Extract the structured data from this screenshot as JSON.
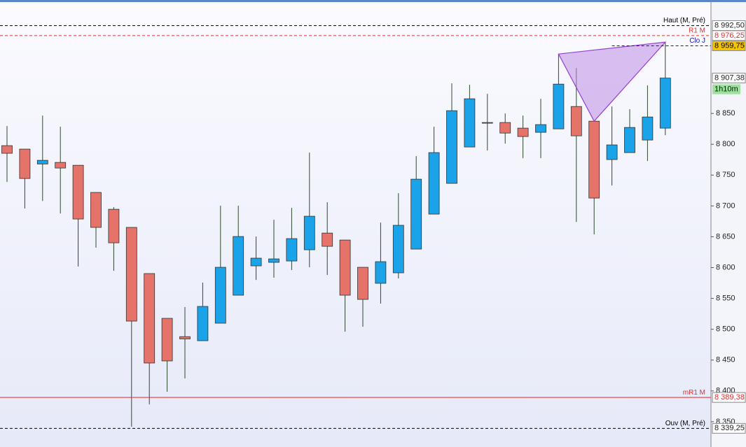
{
  "chart_data": {
    "type": "candlestick",
    "ylim": [
      8309,
      9034
    ],
    "yticks": [
      {
        "value": 8350,
        "label": "8 350"
      },
      {
        "value": 8400,
        "label": "8 400"
      },
      {
        "value": 8450,
        "label": "8 450"
      },
      {
        "value": 8500,
        "label": "8 500"
      },
      {
        "value": 8550,
        "label": "8 550"
      },
      {
        "value": 8600,
        "label": "8 600"
      },
      {
        "value": 8650,
        "label": "8 650"
      },
      {
        "value": 8700,
        "label": "8 700"
      },
      {
        "value": 8750,
        "label": "8 750"
      },
      {
        "value": 8800,
        "label": "8 800"
      },
      {
        "value": 8850,
        "label": "8 850"
      }
    ],
    "up_color": "#1aa3e8",
    "down_color": "#e5736a",
    "open": [
      8797.8,
      8792.2,
      8768,
      8770.6,
      8766,
      8721.9,
      8694.6,
      8665.2,
      8590.3,
      8517.7,
      8488,
      8481.4,
      8509.8,
      8555.2,
      8602.8,
      8608.5,
      8610.7,
      8628.9,
      8656,
      8644.7,
      8600.5,
      8574.5,
      8591.5,
      8630,
      8686.7,
      8736.6,
      8795.6,
      8835.3,
      8835.3,
      8826.2,
      8819.4,
      8825,
      8861.3,
      8837.5,
      8775.2,
      8786.5,
      8806.9,
      8826.2
    ],
    "high": [
      8829.6,
      8792.2,
      8846.6,
      8828.5,
      8766,
      8722,
      8698,
      8665.2,
      8590.3,
      8518,
      8535.9,
      8575.6,
      8700.3,
      8700.3,
      8650.4,
      8677.6,
      8696.9,
      8786.5,
      8706,
      8644.7,
      8600.5,
      8673,
      8720.7,
      8780.8,
      8828.5,
      8898.8,
      8896.5,
      8881.8,
      8850,
      8846.6,
      8873.8,
      8946.4,
      8923.7,
      8837.5,
      8861.3,
      8856.8,
      8895.4,
      8965.7
    ],
    "low": [
      8738.9,
      8695.8,
      8708,
      8687.8,
      8601.7,
      8632.3,
      8594.8,
      8342,
      8378,
      8398.7,
      8420.2,
      8481.4,
      8509.8,
      8555,
      8580,
      8583.5,
      8596,
      8600.5,
      8588,
      8496,
      8504,
      8541.6,
      8582.4,
      8630,
      8686.7,
      8736.6,
      8795.6,
      8789.9,
      8801,
      8777.4,
      8777.4,
      8825,
      8674,
      8653.8,
      8733.2,
      8786.5,
      8772.9,
      8814.8
    ],
    "close": [
      8785.4,
      8744.5,
      8774,
      8761.5,
      8678.8,
      8665.2,
      8640.2,
      8513.2,
      8445.2,
      8448.6,
      8484.3,
      8537,
      8600.5,
      8650.4,
      8615.3,
      8614.1,
      8647,
      8683.3,
      8634.5,
      8555.2,
      8548.4,
      8609.6,
      8668.6,
      8743.4,
      8786.5,
      8854.5,
      8873.8,
      8835.3,
      8818.2,
      8812.6,
      8831.9,
      8897.6,
      8813.7,
      8712.8,
      8799,
      8827.3,
      8844.3,
      8907.38
    ],
    "levels": [
      {
        "name": "Haut (M, Pré)",
        "value": 8992.5,
        "label": "8 992,50",
        "color": "#000000",
        "dash": true
      },
      {
        "name": "R1 M",
        "value": 8976.25,
        "label": "8 976,25",
        "color": "#e03030",
        "dash": true
      },
      {
        "name": "Clo J",
        "value": 8959.75,
        "label": "8 959,75",
        "color": "#1010c0",
        "dash": true
      },
      {
        "name": "mR1 M",
        "value": 8389.38,
        "label": "8 389,38",
        "color": "#e03030",
        "dash": false
      },
      {
        "name": "Ouv (M, Pré)",
        "value": 8339.25,
        "label": "8 339,25",
        "color": "#000000",
        "dash": true
      }
    ],
    "last_price": {
      "value": 8907.38,
      "label": "8 907,38",
      "timer": "1h10m"
    }
  }
}
